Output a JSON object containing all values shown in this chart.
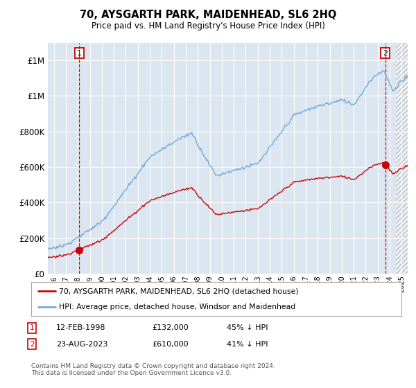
{
  "title": "70, AYSGARTH PARK, MAIDENHEAD, SL6 2HQ",
  "subtitle": "Price paid vs. HM Land Registry's House Price Index (HPI)",
  "hpi_color": "#6fa8dc",
  "price_color": "#cc0000",
  "background_color": "#ffffff",
  "plot_bg_color": "#dce6f1",
  "grid_color": "#ffffff",
  "sale1_year": 1998.12,
  "sale1_price": 132000,
  "sale2_year": 2023.64,
  "sale2_price": 610000,
  "ylim": [
    0,
    1300000
  ],
  "xlim": [
    1995.5,
    2025.5
  ],
  "legend_label_price": "70, AYSGARTH PARK, MAIDENHEAD, SL6 2HQ (detached house)",
  "legend_label_hpi": "HPI: Average price, detached house, Windsor and Maidenhead",
  "footer": "Contains HM Land Registry data © Crown copyright and database right 2024.\nThis data is licensed under the Open Government Licence v3.0."
}
